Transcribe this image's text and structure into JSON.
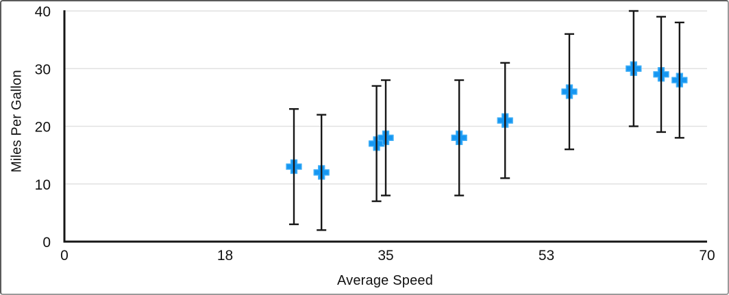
{
  "chart_data": {
    "type": "scatter",
    "title": "",
    "xlabel": "Average Speed",
    "ylabel": "Miles Per Gallon",
    "xlim": [
      0,
      70
    ],
    "ylim": [
      0,
      40
    ],
    "x_ticks": [
      "0",
      "18",
      "35",
      "53",
      "70"
    ],
    "y_ticks": [
      0,
      10,
      20,
      30,
      40
    ],
    "grid": "horizontal-only",
    "legend": "none",
    "series": [
      {
        "name": "Miles Per Gallon",
        "marker": "plus",
        "marker_color": "#1697f2",
        "marker_edge_color": "#4ab3f7",
        "error_bars": {
          "axis": "y",
          "mode": "fixed",
          "value": 10,
          "color": "#161616"
        },
        "points": [
          {
            "x": 25,
            "y": 13
          },
          {
            "x": 28,
            "y": 12
          },
          {
            "x": 34,
            "y": 17
          },
          {
            "x": 35,
            "y": 18
          },
          {
            "x": 43,
            "y": 18
          },
          {
            "x": 48,
            "y": 21
          },
          {
            "x": 55,
            "y": 26
          },
          {
            "x": 62,
            "y": 30
          },
          {
            "x": 65,
            "y": 29
          },
          {
            "x": 67,
            "y": 28
          }
        ]
      }
    ],
    "colors": {
      "gridline": "#e1e1e1",
      "axis_line": "#161616",
      "tick_text": "#111111"
    }
  }
}
